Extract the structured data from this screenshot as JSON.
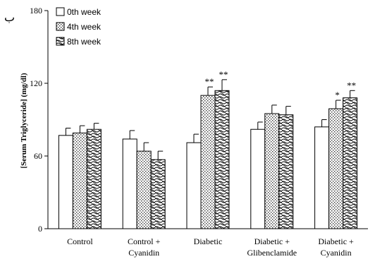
{
  "panel_label": "ب",
  "chart_data": {
    "type": "bar",
    "ylabel": "[Serum Triglyceride] (mg/dl)",
    "ylim": [
      0,
      180
    ],
    "yticks": [
      0,
      60,
      120,
      180
    ],
    "categories": [
      [
        "Control"
      ],
      [
        "Control +",
        "Cyanidin"
      ],
      [
        "Diabetic"
      ],
      [
        "Diabetic +",
        "Glibenclamide"
      ],
      [
        "Diabetic +",
        "Cyanidin"
      ]
    ],
    "series": [
      {
        "name": "0th week",
        "values": [
          77,
          74,
          71,
          82,
          84
        ],
        "errors": [
          6,
          7,
          7,
          6,
          6
        ],
        "significance": [
          "",
          "",
          "",
          "",
          ""
        ]
      },
      {
        "name": "4th week",
        "values": [
          79,
          64,
          110,
          95,
          99
        ],
        "errors": [
          6,
          7,
          7,
          7,
          7
        ],
        "significance": [
          "",
          "",
          "**",
          "",
          "*"
        ]
      },
      {
        "name": "8th week",
        "values": [
          82,
          57,
          114,
          94,
          108
        ],
        "errors": [
          5,
          7,
          9,
          7,
          6
        ],
        "significance": [
          "",
          "",
          "**",
          "",
          "**"
        ]
      }
    ],
    "grid": false,
    "legend_position": "top-left"
  }
}
